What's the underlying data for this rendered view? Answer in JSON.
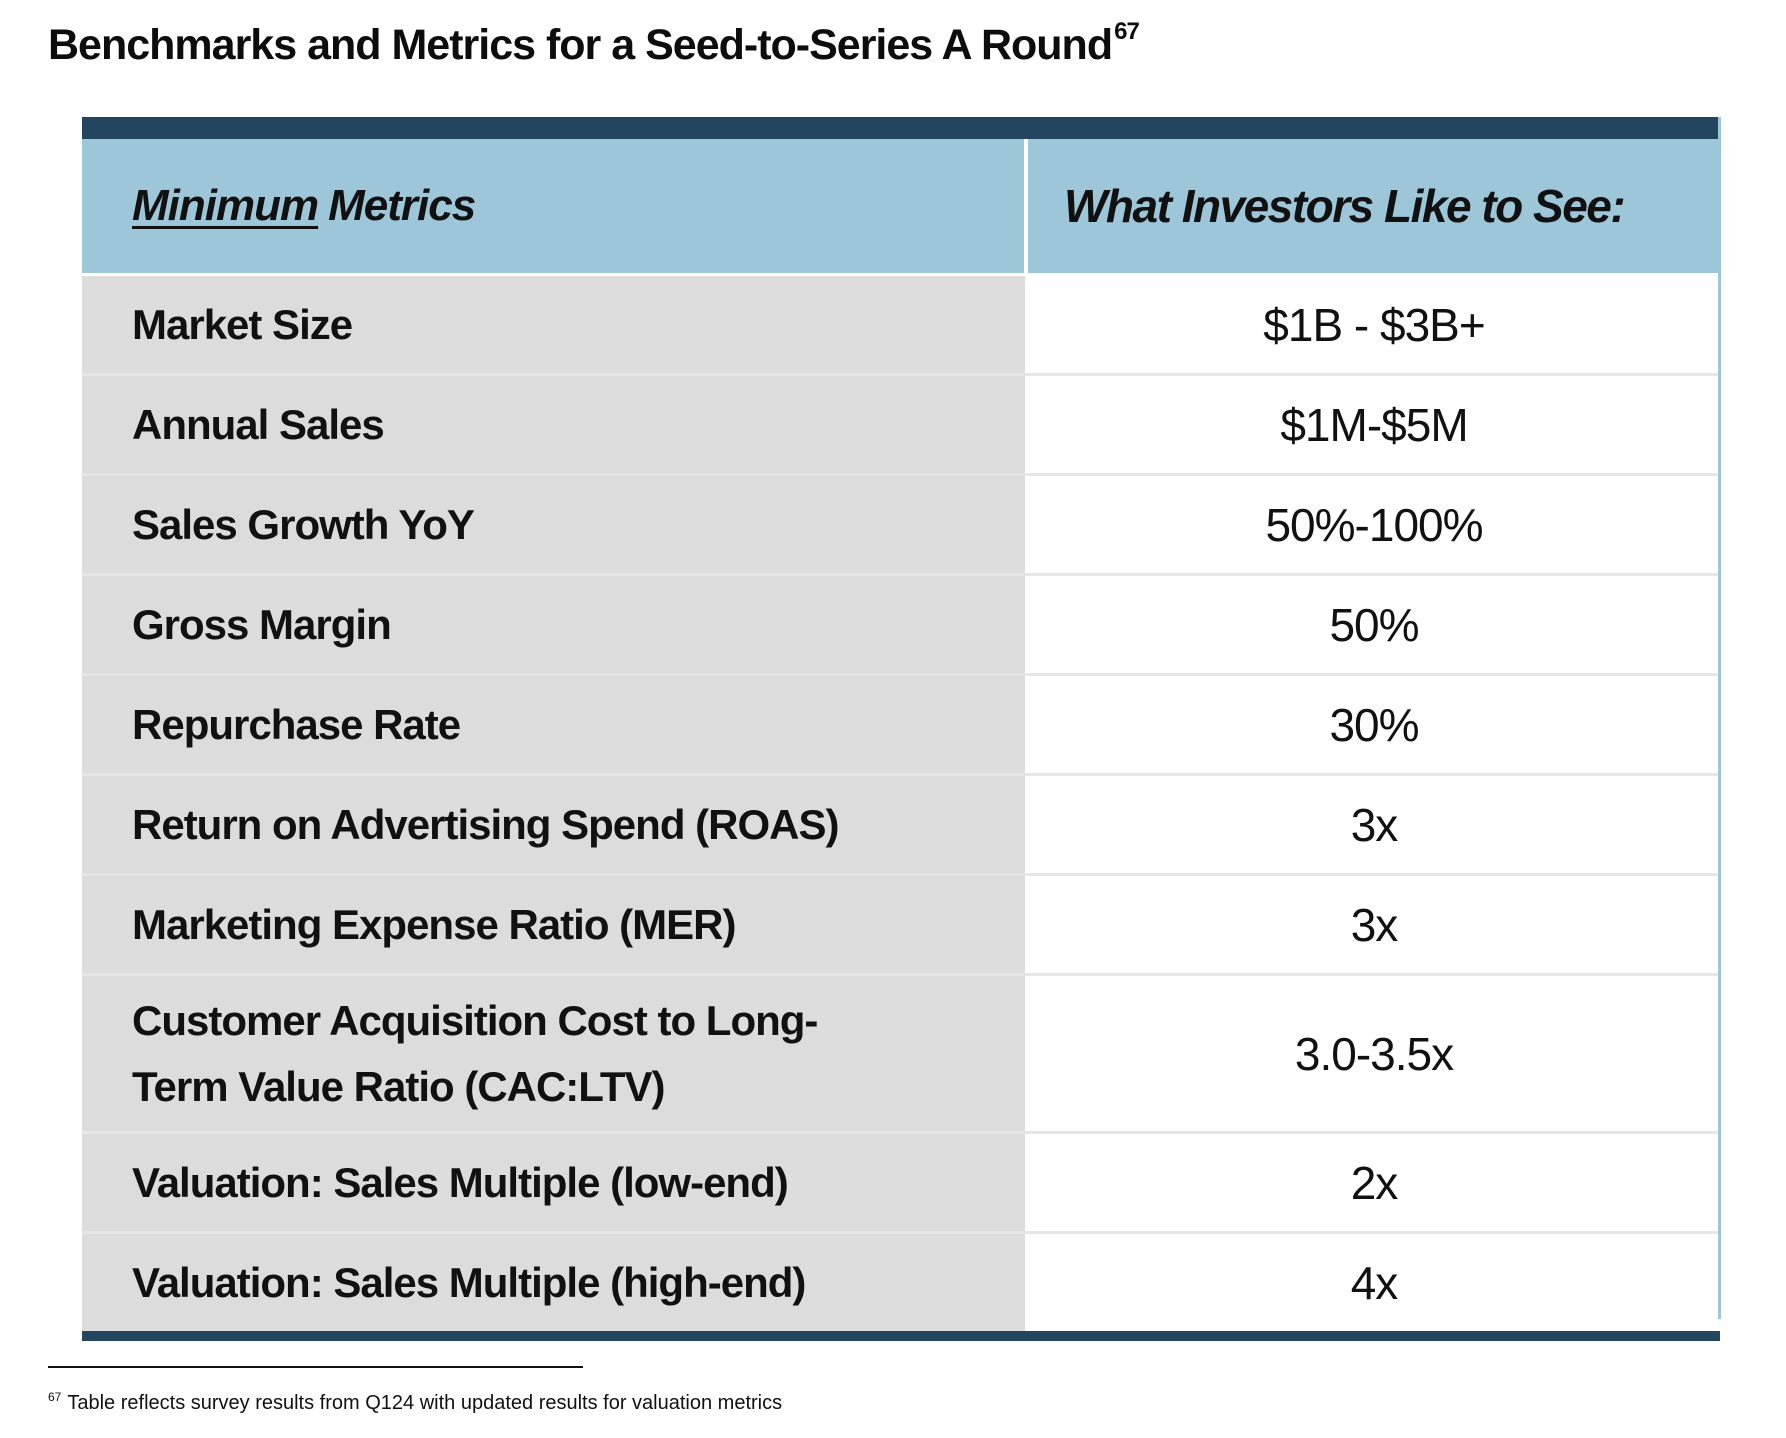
{
  "title": {
    "text": "Benchmarks and Metrics for a Seed-to-Series A Round",
    "footnote_ref": "67"
  },
  "table": {
    "header_left_underlined": "Minimum",
    "header_left_rest": "Metrics",
    "header_right": "What Investors Like to See:",
    "rows": [
      {
        "metric": "Market Size",
        "value": "$1B - $3B+"
      },
      {
        "metric": "Annual Sales",
        "value": "$1M-$5M"
      },
      {
        "metric": "Sales Growth YoY",
        "value": "50%-100%"
      },
      {
        "metric": "Gross Margin",
        "value": "50%"
      },
      {
        "metric": "Repurchase Rate",
        "value": "30%"
      },
      {
        "metric": "Return on Advertising Spend (ROAS)",
        "value": "3x"
      },
      {
        "metric": "Marketing Expense Ratio (MER)",
        "value": "3x"
      },
      {
        "metric": "Customer Acquisition Cost to Long-Term Value Ratio (CAC:LTV)",
        "value": "3.0-3.5x"
      },
      {
        "metric": "Valuation: Sales Multiple (low-end)",
        "value": "2x"
      },
      {
        "metric": "Valuation: Sales Multiple (high-end)",
        "value": "4x"
      }
    ]
  },
  "footnote": {
    "number": "67",
    "text": "Table reflects survey results from Q124 with updated results for valuation metrics"
  },
  "colors": {
    "header_bar": "#234560",
    "header_bg": "#9ec6d9",
    "metric_bg": "#dcdcdc",
    "value_bg": "#ffffff"
  }
}
